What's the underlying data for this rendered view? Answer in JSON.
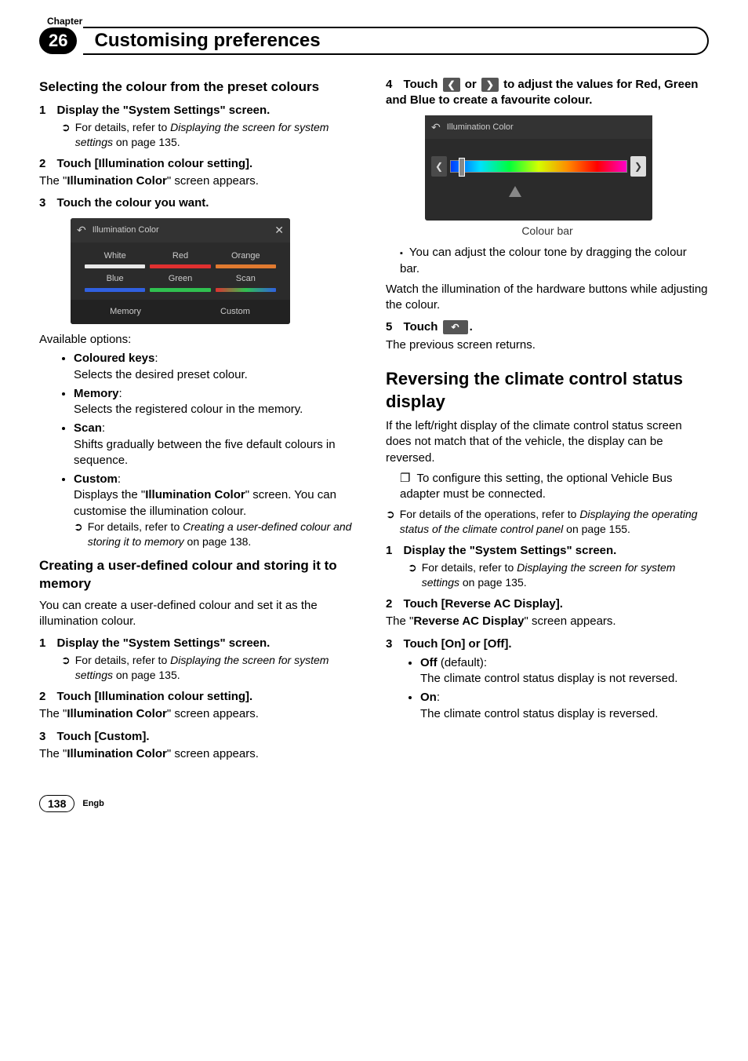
{
  "header": {
    "chapter_label": "Chapter",
    "chapter_number": "26",
    "title": "Customising preferences"
  },
  "footer": {
    "page_number": "138",
    "lang": "Engb"
  },
  "left": {
    "h3_1": "Selecting the colour from the preset colours",
    "s1_num": "1",
    "s1": "Display the \"System Settings\" screen.",
    "s1_ref_icon": "➲",
    "s1_ref_a": "For details, refer to ",
    "s1_ref_b": "Displaying the screen for system settings",
    "s1_ref_c": " on page 135.",
    "s2_num": "2",
    "s2": "Touch [Illumination colour setting].",
    "s2_body_a": "The \"",
    "s2_body_b": "Illumination Color",
    "s2_body_c": "\" screen appears.",
    "s3_num": "3",
    "s3": "Touch the colour you want.",
    "screenshot1": {
      "back": "↶",
      "title": "Illumination Color",
      "close": "✕",
      "swatches": [
        {
          "label": "White",
          "color": "#e8e8e8"
        },
        {
          "label": "Red",
          "color": "#e03030"
        },
        {
          "label": "Orange",
          "color": "#e07a30"
        },
        {
          "label": "Blue",
          "color": "#3060e0"
        },
        {
          "label": "Green",
          "color": "#30c050"
        },
        {
          "label": "Scan",
          "color": "linear-gradient(90deg,#e03030,#30c050,#3060e0)"
        }
      ],
      "memory": "Memory",
      "custom": "Custom"
    },
    "avail": "Available options:",
    "opts": {
      "o1_t": "Coloured keys",
      "o1_b": "Selects the desired preset colour.",
      "o2_t": "Memory",
      "o2_b": "Selects the registered colour in the memory.",
      "o3_t": "Scan",
      "o3_b": "Shifts gradually between the five default colours in sequence.",
      "o4_t": "Custom",
      "o4_b1a": "Displays the \"",
      "o4_b1b": "Illumination Color",
      "o4_b1c": "\" screen. You can customise the illumination colour.",
      "o4_ref_icon": "➲",
      "o4_ref_a": "For details, refer to ",
      "o4_ref_b": "Creating a user-defined colour and storing it to memory",
      "o4_ref_c": " on page 138."
    },
    "h3_2": "Creating a user-defined colour and storing it to memory",
    "h3_2_body": "You can create a user-defined colour and set it as the illumination colour.",
    "c_s1_num": "1",
    "c_s1": "Display the \"System Settings\" screen.",
    "c_s1_ref_icon": "➲",
    "c_s1_ref_a": "For details, refer to ",
    "c_s1_ref_b": "Displaying the screen for system settings",
    "c_s1_ref_c": " on page 135.",
    "c_s2_num": "2",
    "c_s2": "Touch [Illumination colour setting].",
    "c_s2_body_a": "The \"",
    "c_s2_body_b": "Illumination Color",
    "c_s2_body_c": "\" screen appears.",
    "c_s3_num": "3",
    "c_s3": "Touch [Custom].",
    "c_s3_body_a": "The \"",
    "c_s3_body_b": "Illumination Color",
    "c_s3_body_c": "\" screen appears."
  },
  "right": {
    "s4_num": "4",
    "s4_a": "Touch ",
    "s4_b": " or ",
    "s4_c": " to adjust the values for Red, Green and Blue to create a favourite colour.",
    "btn_left": "❮",
    "btn_right": "❯",
    "screenshot2": {
      "back": "↶",
      "title": "Illumination Color",
      "left": "❮",
      "right": "❯"
    },
    "caption": "Colour bar",
    "bullet1": "You can adjust the colour tone by dragging the colour bar.",
    "watch": "Watch the illumination of the hardware buttons while adjusting the colour.",
    "s5_num": "5",
    "s5_a": "Touch ",
    "s5_b": ".",
    "btn_back": "↶",
    "s5_body": "The previous screen returns.",
    "h2": "Reversing the climate control status display",
    "h2_body": "If the left/right display of the climate control status screen does not match that of the vehicle, the display can be reversed.",
    "sq1": "To configure this setting, the optional Vehicle Bus adapter must be connected.",
    "ref_icon": "➲",
    "ref_a": "For details of the operations, refer to ",
    "ref_b": "Displaying the operating status of the climate control panel",
    "ref_c": " on page 155.",
    "r_s1_num": "1",
    "r_s1": "Display the \"System Settings\" screen.",
    "r_s1_ref_icon": "➲",
    "r_s1_ref_a": "For details, refer to ",
    "r_s1_ref_b": "Displaying the screen for system settings",
    "r_s1_ref_c": " on page 135.",
    "r_s2_num": "2",
    "r_s2": "Touch [Reverse AC Display].",
    "r_s2_body_a": "The \"",
    "r_s2_body_b": "Reverse AC Display",
    "r_s2_body_c": "\" screen appears.",
    "r_s3_num": "3",
    "r_s3": "Touch [On] or [Off].",
    "off_t": "Off",
    "off_d": " (default):",
    "off_b": "The climate control status display is not reversed.",
    "on_t": "On",
    "on_b": "The climate control status display is reversed."
  }
}
